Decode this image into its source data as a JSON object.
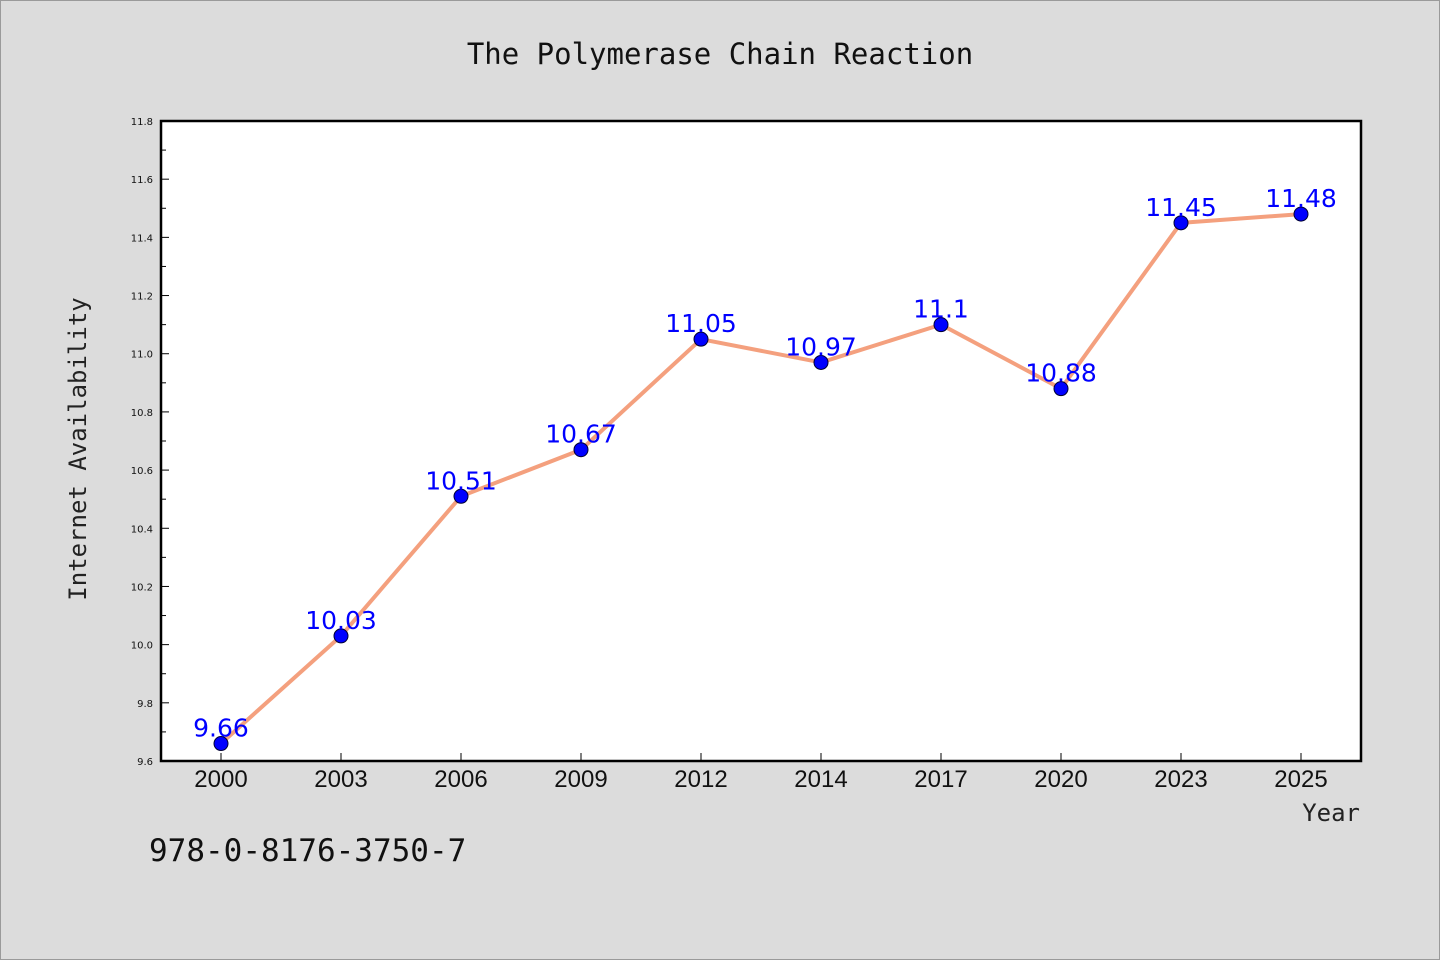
{
  "chart_data": {
    "type": "line",
    "title": "The Polymerase Chain Reaction",
    "xlabel": "Year",
    "ylabel": "Internet Availability",
    "categories": [
      "2000",
      "2003",
      "2006",
      "2009",
      "2012",
      "2014",
      "2017",
      "2020",
      "2023",
      "2025"
    ],
    "series": [
      {
        "values": [
          9.66,
          10.03,
          10.51,
          10.67,
          11.05,
          10.97,
          11.1,
          10.88,
          11.45,
          11.48
        ]
      }
    ],
    "data_labels": [
      "9.66",
      "10.03",
      "10.51",
      "10.67",
      "11.05",
      "10.97",
      "11.1",
      "10.88",
      "11.45",
      "11.48"
    ],
    "ylim": [
      9.6,
      11.8
    ],
    "yticks": [
      "9.6",
      "9.8",
      "10.0",
      "10.2",
      "10.4",
      "10.6",
      "10.8",
      "11.0",
      "11.2",
      "11.4",
      "11.6",
      "11.8"
    ],
    "grid": false,
    "colors": {
      "line": "#f4a07e",
      "marker": "#0000ff",
      "label": "#0000ff"
    }
  },
  "footer": {
    "isbn": "978-0-8176-3750-7"
  }
}
